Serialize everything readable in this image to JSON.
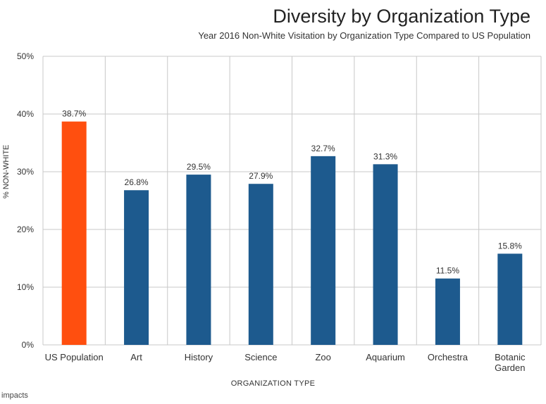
{
  "chart_data": {
    "type": "bar",
    "title": "Diversity by Organization Type",
    "subtitle": "Year 2016 Non-White Visitation by Organization Type Compared to US Population",
    "xlabel": "ORGANIZATION TYPE",
    "ylabel": "% NON-WHITE",
    "categories": [
      "US Population",
      "Art",
      "History",
      "Science",
      "Zoo",
      "Aquarium",
      "Orchestra",
      "Botanic Garden"
    ],
    "category_lines": [
      [
        "US Population"
      ],
      [
        "Art"
      ],
      [
        "History"
      ],
      [
        "Science"
      ],
      [
        "Zoo"
      ],
      [
        "Aquarium"
      ],
      [
        "Orchestra"
      ],
      [
        "Botanic",
        "Garden"
      ]
    ],
    "values": [
      38.7,
      26.8,
      29.5,
      27.9,
      32.7,
      31.3,
      11.5,
      15.8
    ],
    "data_labels": [
      "38.7%",
      "26.8%",
      "29.5%",
      "27.9%",
      "32.7%",
      "31.3%",
      "11.5%",
      "15.8%"
    ],
    "bar_colors": [
      "#ff4f0f",
      "#1d5a8e",
      "#1d5a8e",
      "#1d5a8e",
      "#1d5a8e",
      "#1d5a8e",
      "#1d5a8e",
      "#1d5a8e"
    ],
    "ylim": [
      0,
      50
    ],
    "yticks": [
      0,
      10,
      20,
      30,
      40,
      50
    ],
    "ytick_labels": [
      "0%",
      "10%",
      "20%",
      "30%",
      "40%",
      "50%"
    ],
    "grid": true,
    "colors": {
      "highlight": "#ff4f0f",
      "bars": "#1d5a8e",
      "grid": "#c8c8c8"
    }
  },
  "footer": {
    "logo_text": "impacts"
  }
}
